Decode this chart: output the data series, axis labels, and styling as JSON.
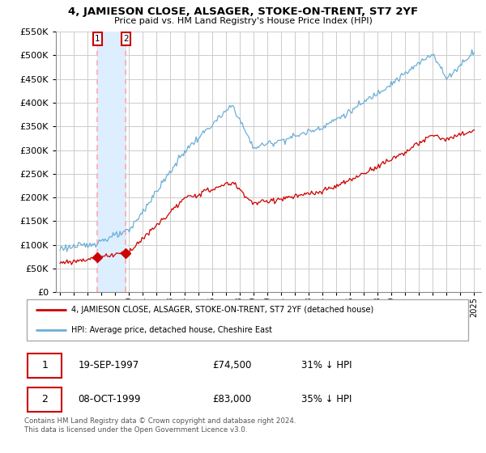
{
  "title": "4, JAMIESON CLOSE, ALSAGER, STOKE-ON-TRENT, ST7 2YF",
  "subtitle": "Price paid vs. HM Land Registry's House Price Index (HPI)",
  "legend_line1": "4, JAMIESON CLOSE, ALSAGER, STOKE-ON-TRENT, ST7 2YF (detached house)",
  "legend_line2": "HPI: Average price, detached house, Cheshire East",
  "annotation1_date": "19-SEP-1997",
  "annotation1_price": "£74,500",
  "annotation1_hpi": "31% ↓ HPI",
  "annotation2_date": "08-OCT-1999",
  "annotation2_price": "£83,000",
  "annotation2_hpi": "35% ↓ HPI",
  "footnote": "Contains HM Land Registry data © Crown copyright and database right 2024.\nThis data is licensed under the Open Government Licence v3.0.",
  "ylim": [
    0,
    550000
  ],
  "yticks": [
    0,
    50000,
    100000,
    150000,
    200000,
    250000,
    300000,
    350000,
    400000,
    450000,
    500000,
    550000
  ],
  "sale1_year": 1997.72,
  "sale1_price": 74500,
  "sale2_year": 1999.77,
  "sale2_price": 83000,
  "hpi_color": "#6baed6",
  "price_color": "#cc0000",
  "vline_color": "#ffaaaa",
  "span_color": "#ddeeff",
  "grid_color": "#cccccc",
  "background_color": "#ffffff",
  "label_box_color": "#cc0000"
}
